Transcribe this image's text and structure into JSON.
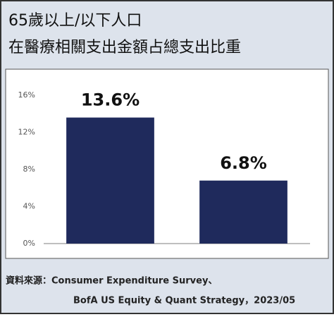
{
  "chart_data": {
    "type": "bar",
    "title": [
      "65歲以上/以下人口",
      "在醫療相關支出金額占總支出比重"
    ],
    "categories": [
      null,
      null
    ],
    "values": [
      13.6,
      6.8
    ],
    "value_labels": [
      "13.6%",
      "6.8%"
    ],
    "color": "#1f2a5c",
    "ylim": [
      0,
      16
    ],
    "yticks": [
      {
        "value": 0,
        "label": "0%"
      },
      {
        "value": 4,
        "label": "4%"
      },
      {
        "value": 8,
        "label": "8%"
      },
      {
        "value": 12,
        "label": "12%"
      },
      {
        "value": 16,
        "label": "16%"
      }
    ],
    "grid": false,
    "source": [
      "資料來源：Consumer Expenditure Survey、",
      "BofA US Equity & Quant Strategy，2023/05"
    ]
  }
}
